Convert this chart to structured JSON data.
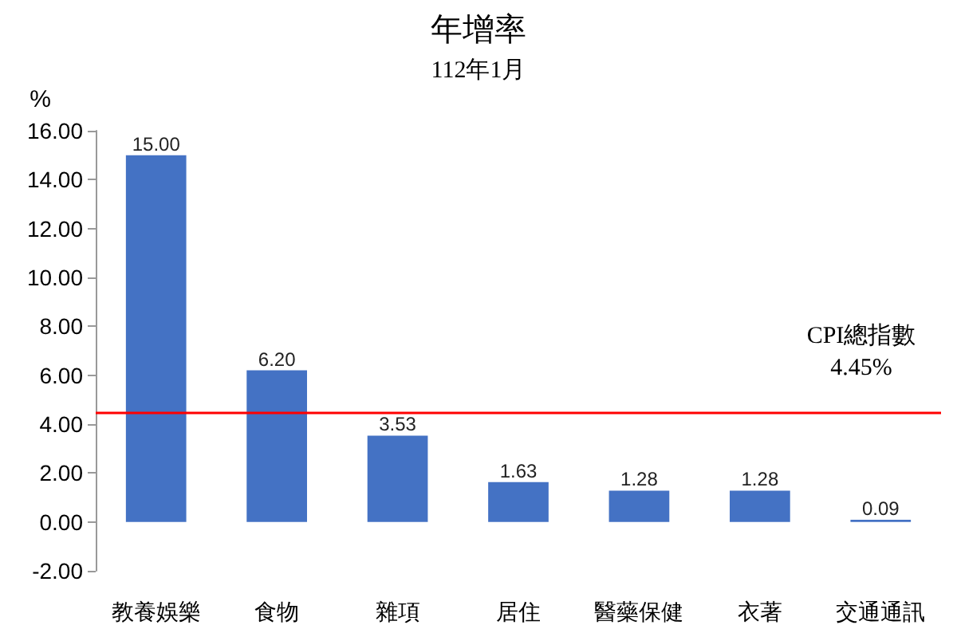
{
  "chart_data": {
    "type": "bar",
    "title": "年增率",
    "subtitle": "112年1月",
    "ylabel": "%",
    "categories": [
      "教養娛樂",
      "食物",
      "雜項",
      "居住",
      "醫藥保健",
      "衣著",
      "交通通訊"
    ],
    "values": [
      15.0,
      6.2,
      3.53,
      1.63,
      1.28,
      1.28,
      0.09
    ],
    "value_labels": [
      "15.00",
      "6.20",
      "3.53",
      "1.63",
      "1.28",
      "1.28",
      "0.09"
    ],
    "color": "#4472c4",
    "ylim": [
      -2,
      16
    ],
    "yticks": [
      {
        "value": -2,
        "label": "-2.00"
      },
      {
        "value": 0,
        "label": "0.00"
      },
      {
        "value": 2,
        "label": "2.00"
      },
      {
        "value": 4,
        "label": "4.00"
      },
      {
        "value": 6,
        "label": "6.00"
      },
      {
        "value": 8,
        "label": "8.00"
      },
      {
        "value": 10,
        "label": "10.00"
      },
      {
        "value": 12,
        "label": "12.00"
      },
      {
        "value": 14,
        "label": "14.00"
      },
      {
        "value": 16,
        "label": "16.00"
      }
    ],
    "ref_lines": [
      {
        "axis": "y",
        "value": 4.45,
        "label": "CPI總指數\n4.45%",
        "color": "#ff0000"
      }
    ],
    "grid": false
  }
}
